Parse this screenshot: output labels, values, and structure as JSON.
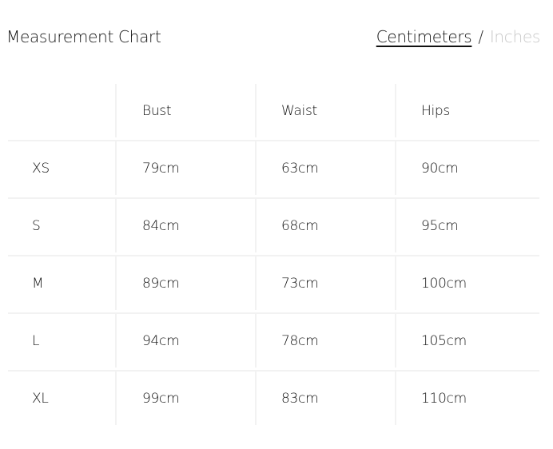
{
  "header": {
    "title": "Measurement Chart"
  },
  "units": {
    "active": "Centimeters",
    "separator": "/",
    "inactive": "Inches"
  },
  "table": {
    "columns": [
      "",
      "Bust",
      "Waist",
      "Hips"
    ],
    "rows": [
      [
        "XS",
        "79cm",
        "63cm",
        "90cm"
      ],
      [
        "S",
        "84cm",
        "68cm",
        "95cm"
      ],
      [
        "M",
        "89cm",
        "73cm",
        "100cm"
      ],
      [
        "L",
        "94cm",
        "78cm",
        "105cm"
      ],
      [
        "XL",
        "99cm",
        "83cm",
        "110cm"
      ]
    ]
  }
}
